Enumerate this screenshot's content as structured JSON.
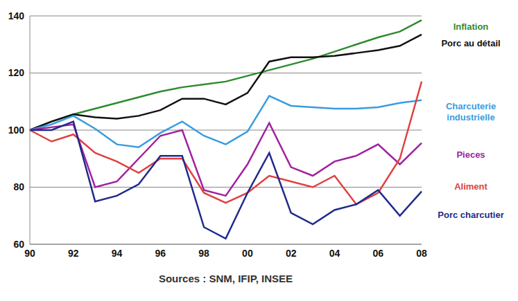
{
  "chart_data": {
    "type": "line",
    "source": "Sources : SNM, IFIP, INSEE",
    "categories": [
      "90",
      null,
      "92",
      null,
      "94",
      null,
      "96",
      null,
      "98",
      null,
      "00",
      null,
      "02",
      null,
      "04",
      null,
      "06",
      null,
      "08"
    ],
    "ylim": [
      60,
      140
    ],
    "yticks": [
      60,
      80,
      100,
      120,
      140
    ],
    "grid": true,
    "series": [
      {
        "name": "Inflation",
        "color": "#2e8b2e",
        "values": [
          100,
          103,
          105.5,
          107.5,
          109.5,
          111.5,
          113.5,
          115,
          116,
          117,
          119,
          121,
          123,
          125,
          127.5,
          130,
          132.5,
          134.5,
          138.5
        ]
      },
      {
        "name": "Porc au détail",
        "color": "#111111",
        "values": [
          100,
          103,
          105.5,
          104.5,
          104,
          105,
          107,
          111,
          111,
          109,
          113,
          124,
          125.5,
          125.5,
          126,
          127,
          128,
          129.5,
          133.5
        ]
      },
      {
        "name": "Charcuterie industrielle",
        "color": "#3a9be0",
        "values": [
          100,
          102,
          105,
          100.5,
          95,
          94,
          99,
          103,
          98,
          95,
          99.5,
          112,
          108.5,
          108,
          107.5,
          107.5,
          108,
          109.5,
          110.5
        ]
      },
      {
        "name": "Pieces",
        "color": "#a020a0",
        "values": [
          100,
          101,
          102,
          80,
          82,
          90,
          98,
          100,
          79,
          77,
          88,
          102.5,
          87,
          84,
          89,
          91,
          95,
          88,
          95.5
        ]
      },
      {
        "name": "Aliment",
        "color": "#e04040",
        "values": [
          100,
          96,
          98.5,
          92,
          89,
          85,
          90,
          90,
          78,
          74.5,
          78,
          84,
          82,
          80,
          84,
          74,
          78,
          90,
          117
        ]
      },
      {
        "name": "Porc charcutier",
        "color": "#1f2a8a",
        "values": [
          100,
          100,
          103,
          75,
          77,
          81,
          91,
          91,
          66,
          62,
          78,
          92,
          71,
          67,
          72,
          74,
          79,
          70,
          78.5
        ]
      }
    ]
  }
}
